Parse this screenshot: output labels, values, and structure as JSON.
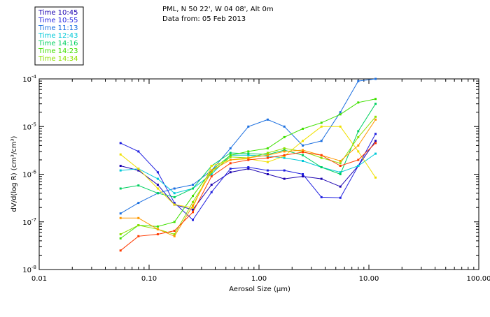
{
  "chart_data": {
    "type": "line",
    "title_lines": [
      "PML, N 50 22', W 04 08', Alt 0m",
      "Data from: 05 Feb 2013"
    ],
    "xlabel": "Aerosol Size (",
    "xlabel_unit": "µm",
    "xlabel_close": ")",
    "ylabel": "dV/d(log R) (cm³/cm³)",
    "x_scale": "log",
    "y_scale": "log",
    "xlim": [
      0.01,
      100
    ],
    "ylim": [
      1e-08,
      0.0001
    ],
    "x_ticks": [
      {
        "value": 0.01,
        "label": "0.01"
      },
      {
        "value": 0.1,
        "label": "0.10"
      },
      {
        "value": 1,
        "label": "1.00"
      },
      {
        "value": 10,
        "label": "10.00"
      },
      {
        "value": 100,
        "label": "100.00"
      }
    ],
    "y_ticks": [
      {
        "value": 1e-08,
        "base": "10",
        "exp": "-8"
      },
      {
        "value": 1e-07,
        "base": "10",
        "exp": "-7"
      },
      {
        "value": 1e-06,
        "base": "10",
        "exp": "-6"
      },
      {
        "value": 1e-05,
        "base": "10",
        "exp": "-5"
      },
      {
        "value": 0.0001,
        "base": "10",
        "exp": "-4"
      }
    ],
    "grid": false,
    "legend_position": "top-left outside",
    "x": [
      0.055,
      0.08,
      0.12,
      0.17,
      0.25,
      0.37,
      0.55,
      0.8,
      1.2,
      1.7,
      2.5,
      3.7,
      5.5,
      8.0,
      11.5
    ],
    "series": [
      {
        "name": "Time 10:45",
        "color": "#1a00b0",
        "values": [
          1.5e-06,
          1.2e-06,
          6e-07,
          2.3e-07,
          1.8e-07,
          6e-07,
          1.1e-06,
          1.3e-06,
          1e-06,
          8e-07,
          9e-07,
          8e-07,
          5.5e-07,
          1.5e-06,
          5e-06
        ]
      },
      {
        "name": "Time 10:55",
        "color": "#1f1fe0",
        "values": [
          4.5e-06,
          3e-06,
          1.1e-06,
          2.5e-07,
          1.1e-07,
          4.2e-07,
          1.3e-06,
          1.4e-06,
          1.2e-06,
          1.2e-06,
          1e-06,
          3.3e-07,
          3.2e-07,
          1.5e-06,
          7e-06
        ]
      },
      {
        "name": "Time 11:13",
        "color": "#1b6fe0",
        "values": [
          1.5e-07,
          2.5e-07,
          4e-07,
          5e-07,
          6e-07,
          1.2e-06,
          3.5e-06,
          1e-05,
          1.4e-05,
          1e-05,
          4e-06,
          5e-06,
          2e-05,
          9e-05,
          0.0001
        ]
      },
      {
        "name": "Time 12:43",
        "color": "#00c8d8",
        "values": [
          1.2e-06,
          1.3e-06,
          8e-07,
          4e-07,
          5e-07,
          1e-06,
          2.5e-06,
          2.5e-06,
          2.4e-06,
          2.2e-06,
          1.9e-06,
          1.4e-06,
          1.1e-06,
          1.5e-06,
          2.7e-06
        ]
      },
      {
        "name": "Time 14:16",
        "color": "#00d060",
        "values": [
          5e-07,
          5.8e-07,
          4e-07,
          3.3e-07,
          5e-07,
          1.5e-06,
          2.8e-06,
          2.7e-06,
          2.6e-06,
          3.2e-06,
          2.5e-06,
          1.4e-06,
          1e-06,
          8e-06,
          3e-05
        ]
      },
      {
        "name": "Time 14:23",
        "color": "#40e000",
        "values": [
          4.5e-08,
          8.5e-08,
          8e-08,
          1e-07,
          3.5e-07,
          1.2e-06,
          2.5e-06,
          3e-06,
          3.5e-06,
          6e-06,
          9e-06,
          1.2e-05,
          1.8e-05,
          3.2e-05,
          3.8e-05
        ]
      },
      {
        "name": "Time 14:34",
        "color": "#8ee000",
        "values": [
          5.5e-08,
          8.5e-08,
          7e-08,
          5.5e-08,
          2.6e-07,
          1.1e-06,
          2.3e-06,
          2.2e-06,
          2.8e-06,
          3.5e-06,
          3e-06,
          2.2e-06,
          1.7e-06,
          6e-06,
          1.6e-05
        ]
      },
      {
        "name": "",
        "color": "#f0e000",
        "values": [
          2.6e-06,
          1.3e-06,
          5e-07,
          2.3e-07,
          2e-07,
          1.5e-06,
          2e-06,
          2.1e-06,
          1.8e-06,
          2.4e-06,
          5e-06,
          1e-05,
          1e-05,
          3e-06,
          8.5e-07
        ]
      },
      {
        "name": "",
        "color": "#ff9800",
        "values": [
          1.2e-07,
          1.2e-07,
          7e-08,
          5e-08,
          2.2e-07,
          1.2e-06,
          2e-06,
          2.2e-06,
          2.5e-06,
          3e-06,
          3.2e-06,
          2.5e-06,
          1.9e-06,
          4e-06,
          1.4e-05
        ]
      },
      {
        "name": "",
        "color": "#ff3a00",
        "values": [
          2.5e-08,
          5e-08,
          5.5e-08,
          6.5e-08,
          1.6e-07,
          9e-07,
          1.7e-06,
          2e-06,
          2.2e-06,
          2.5e-06,
          2.9e-06,
          2.5e-06,
          1.5e-06,
          2e-06,
          4.5e-06
        ]
      }
    ]
  }
}
